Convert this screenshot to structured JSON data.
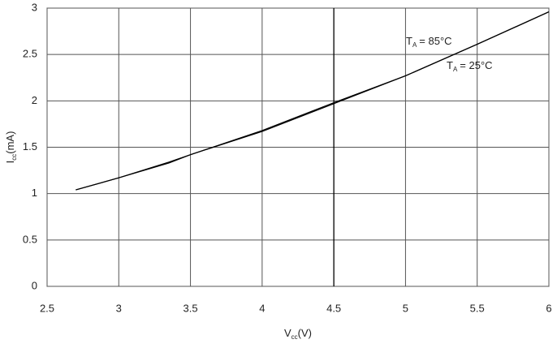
{
  "chart_data": {
    "type": "line",
    "xlabel": "V",
    "xlabel_sub": "cc",
    "xlabel_unit": "(V)",
    "ylabel": "I",
    "ylabel_sub": "cc",
    "ylabel_unit": "(mA)",
    "x": [
      2.7,
      3,
      3.35,
      3.5,
      4,
      4.5,
      5,
      5.5,
      6
    ],
    "series": [
      {
        "symbol": "T",
        "symbol_sub": "A",
        "name": "= 85°C",
        "color": "#000000",
        "values": [
          1.04,
          1.17,
          1.34,
          1.42,
          1.68,
          1.98,
          2.27,
          2.61,
          2.96
        ]
      },
      {
        "symbol": "T",
        "symbol_sub": "A",
        "name": "= 25°C",
        "color": "#000000",
        "values": [
          1.04,
          1.17,
          1.33,
          1.42,
          1.67,
          1.97,
          2.27,
          2.61,
          2.96
        ]
      }
    ],
    "xlim": [
      2.5,
      6
    ],
    "xticks": [
      2.5,
      3,
      3.5,
      4,
      4.5,
      5,
      5.5,
      6
    ],
    "ylim": [
      0,
      3
    ],
    "yticks": [
      0,
      0.5,
      1,
      1.5,
      2,
      2.5,
      3
    ],
    "grid": true,
    "grid_color": "#555555",
    "highlight_x": 4.5
  }
}
